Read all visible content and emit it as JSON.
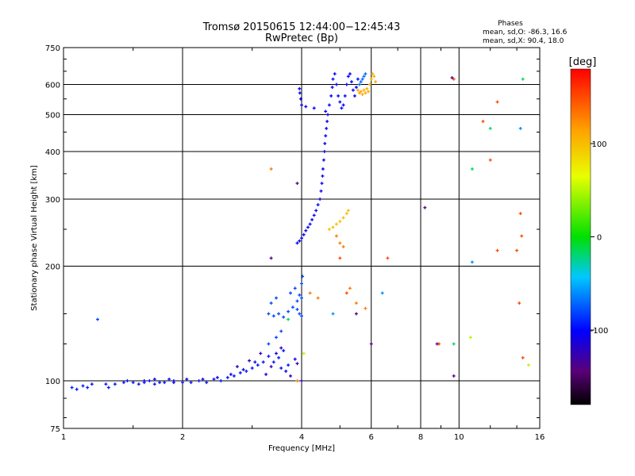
{
  "chart_data": {
    "type": "scatter",
    "title": "Tromsø 20150615 12:44:00−12:45:43",
    "subtitle": "RwPretec (Bp)",
    "xlabel": "Frequency [MHz]",
    "ylabel": "Stationary phase Virtual Height [km]",
    "x_scale": "log",
    "y_scale": "log",
    "xlim": [
      1,
      16
    ],
    "ylim": [
      75,
      750
    ],
    "x_ticks": [
      1,
      2,
      4,
      6,
      8,
      10,
      16
    ],
    "y_ticks": [
      75,
      100,
      200,
      300,
      400,
      500,
      600,
      750
    ],
    "grid": true,
    "stats": {
      "heading": "Phases",
      "line1": "mean, sd,O: -86.3, 16.6",
      "line2": "mean, sd,X:  90.4, 18.0"
    },
    "colorbar": {
      "label": "[deg]",
      "range": [
        -180,
        180
      ],
      "ticks": [
        100,
        0,
        -100
      ]
    },
    "point_groups": [
      {
        "phase": -95,
        "points": [
          [
            1.05,
            96
          ],
          [
            1.08,
            95
          ],
          [
            1.12,
            97
          ],
          [
            1.15,
            96
          ],
          [
            1.18,
            98
          ],
          [
            1.28,
            98
          ],
          [
            1.3,
            96
          ],
          [
            1.35,
            98
          ],
          [
            1.42,
            99
          ],
          [
            1.45,
            100
          ],
          [
            1.5,
            99
          ],
          [
            1.55,
            98
          ],
          [
            1.6,
            99
          ],
          [
            1.65,
            100
          ],
          [
            1.7,
            98
          ],
          [
            1.75,
            99
          ],
          [
            1.8,
            99
          ],
          [
            1.85,
            101
          ],
          [
            1.9,
            100
          ],
          [
            2.0,
            99
          ],
          [
            2.1,
            99
          ],
          [
            2.2,
            100
          ],
          [
            2.3,
            99
          ],
          [
            2.4,
            101
          ],
          [
            2.5,
            100
          ],
          [
            2.6,
            102
          ],
          [
            2.7,
            103
          ],
          [
            2.8,
            105
          ],
          [
            2.9,
            106
          ],
          [
            3.0,
            108
          ],
          [
            3.1,
            110
          ],
          [
            3.2,
            112
          ],
          [
            3.3,
            116
          ],
          [
            3.4,
            112
          ],
          [
            3.5,
            115
          ],
          [
            3.55,
            108
          ],
          [
            3.6,
            120
          ],
          [
            3.7,
            110
          ]
        ]
      },
      {
        "phase": -110,
        "points": [
          [
            1.6,
            100
          ],
          [
            1.7,
            101
          ],
          [
            1.9,
            99
          ],
          [
            2.05,
            101
          ],
          [
            2.25,
            101
          ],
          [
            2.45,
            102
          ],
          [
            2.65,
            104
          ],
          [
            2.85,
            107
          ],
          [
            3.05,
            112
          ],
          [
            3.25,
            104
          ],
          [
            3.45,
            118
          ],
          [
            3.65,
            106
          ],
          [
            3.85,
            114
          ]
        ]
      },
      {
        "phase": -125,
        "points": [
          [
            2.75,
            109
          ],
          [
            2.95,
            113
          ],
          [
            3.15,
            118
          ],
          [
            3.35,
            109
          ],
          [
            3.55,
            122
          ],
          [
            3.75,
            103
          ],
          [
            3.9,
            111
          ],
          [
            4.0,
            100
          ]
        ]
      },
      {
        "phase": -80,
        "points": [
          [
            1.22,
            145
          ],
          [
            3.3,
            150
          ],
          [
            3.4,
            148
          ],
          [
            3.5,
            150
          ],
          [
            3.6,
            147
          ],
          [
            3.7,
            152
          ],
          [
            3.8,
            156
          ],
          [
            3.9,
            154
          ],
          [
            3.95,
            150
          ],
          [
            4.0,
            148
          ],
          [
            3.9,
            162
          ],
          [
            3.95,
            168
          ],
          [
            4.0,
            165
          ],
          [
            3.35,
            160
          ],
          [
            3.45,
            165
          ],
          [
            3.75,
            170
          ],
          [
            3.85,
            175
          ],
          [
            4.0,
            180
          ],
          [
            4.02,
            188
          ],
          [
            3.3,
            125
          ],
          [
            3.45,
            130
          ],
          [
            3.55,
            135
          ]
        ]
      },
      {
        "phase": -105,
        "points": [
          [
            3.9,
            230
          ],
          [
            3.95,
            233
          ],
          [
            4.0,
            237
          ],
          [
            4.05,
            242
          ],
          [
            4.1,
            248
          ],
          [
            4.15,
            253
          ],
          [
            4.2,
            258
          ],
          [
            4.25,
            265
          ],
          [
            4.3,
            272
          ],
          [
            4.35,
            280
          ],
          [
            4.4,
            290
          ],
          [
            4.45,
            300
          ],
          [
            4.48,
            315
          ],
          [
            4.5,
            330
          ],
          [
            4.52,
            345
          ],
          [
            4.53,
            360
          ],
          [
            4.55,
            380
          ],
          [
            4.57,
            400
          ],
          [
            4.58,
            420
          ],
          [
            4.6,
            440
          ],
          [
            4.62,
            460
          ],
          [
            4.64,
            480
          ],
          [
            4.66,
            500
          ],
          [
            4.6,
            510
          ],
          [
            4.3,
            520
          ],
          [
            4.1,
            525
          ],
          [
            4.0,
            530
          ],
          [
            3.98,
            550
          ],
          [
            3.96,
            570
          ],
          [
            3.95,
            585
          ]
        ]
      },
      {
        "phase": -100,
        "points": [
          [
            4.7,
            530
          ],
          [
            4.75,
            560
          ],
          [
            4.78,
            590
          ],
          [
            4.8,
            620
          ],
          [
            4.85,
            640
          ],
          [
            4.9,
            600
          ],
          [
            4.95,
            560
          ],
          [
            5.0,
            540
          ],
          [
            5.05,
            520
          ],
          [
            5.1,
            530
          ],
          [
            5.15,
            560
          ],
          [
            5.2,
            600
          ],
          [
            5.25,
            630
          ],
          [
            5.3,
            640
          ],
          [
            5.35,
            610
          ],
          [
            5.4,
            580
          ],
          [
            5.45,
            560
          ],
          [
            5.5,
            590
          ],
          [
            5.55,
            620
          ]
        ]
      },
      {
        "phase": -70,
        "points": [
          [
            5.6,
            600
          ],
          [
            5.65,
            610
          ],
          [
            5.7,
            620
          ],
          [
            5.75,
            630
          ],
          [
            5.8,
            640
          ]
        ]
      },
      {
        "phase": 110,
        "points": [
          [
            5.55,
            580
          ],
          [
            5.6,
            570
          ],
          [
            5.65,
            575
          ],
          [
            5.7,
            565
          ],
          [
            5.75,
            580
          ],
          [
            5.8,
            570
          ],
          [
            5.85,
            585
          ],
          [
            5.9,
            575
          ],
          [
            5.95,
            600
          ],
          [
            6.0,
            620
          ],
          [
            6.05,
            640
          ],
          [
            6.1,
            630
          ],
          [
            6.15,
            610
          ]
        ]
      },
      {
        "phase": 100,
        "points": [
          [
            4.7,
            250
          ],
          [
            4.8,
            253
          ],
          [
            4.9,
            258
          ],
          [
            5.0,
            262
          ],
          [
            5.1,
            268
          ],
          [
            5.2,
            275
          ],
          [
            5.25,
            280
          ]
        ]
      },
      {
        "phase": 130,
        "points": [
          [
            3.35,
            360
          ],
          [
            3.9,
            100
          ],
          [
            4.2,
            170
          ],
          [
            4.4,
            165
          ],
          [
            4.9,
            240
          ],
          [
            5.0,
            230
          ],
          [
            5.1,
            225
          ],
          [
            5.3,
            175
          ],
          [
            5.5,
            160
          ],
          [
            5.8,
            155
          ]
        ]
      },
      {
        "phase": -15,
        "points": [
          [
            9.7,
            125
          ],
          [
            10.8,
            360
          ],
          [
            12.0,
            460
          ],
          [
            14.5,
            620
          ],
          [
            3.7,
            145
          ]
        ]
      },
      {
        "phase": 150,
        "points": [
          [
            5.0,
            210
          ],
          [
            5.2,
            170
          ],
          [
            6.6,
            210
          ],
          [
            8.9,
            125
          ],
          [
            9.7,
            620
          ],
          [
            12.0,
            380
          ],
          [
            12.5,
            220
          ],
          [
            14.0,
            220
          ],
          [
            14.2,
            160
          ],
          [
            14.3,
            275
          ],
          [
            14.4,
            240
          ],
          [
            14.5,
            115
          ],
          [
            11.5,
            480
          ],
          [
            12.5,
            540
          ]
        ]
      },
      {
        "phase": -140,
        "points": [
          [
            3.35,
            210
          ],
          [
            3.9,
            330
          ],
          [
            5.5,
            150
          ],
          [
            6.0,
            125
          ],
          [
            8.2,
            285
          ],
          [
            8.8,
            125
          ],
          [
            9.6,
            625
          ],
          [
            9.7,
            103
          ]
        ]
      },
      {
        "phase": 50,
        "points": [
          [
            10.7,
            130
          ],
          [
            15.0,
            110
          ],
          [
            4.05,
            118
          ]
        ]
      },
      {
        "phase": -60,
        "points": [
          [
            10.8,
            205
          ],
          [
            14.3,
            460
          ],
          [
            6.4,
            170
          ],
          [
            4.8,
            150
          ]
        ]
      }
    ]
  }
}
